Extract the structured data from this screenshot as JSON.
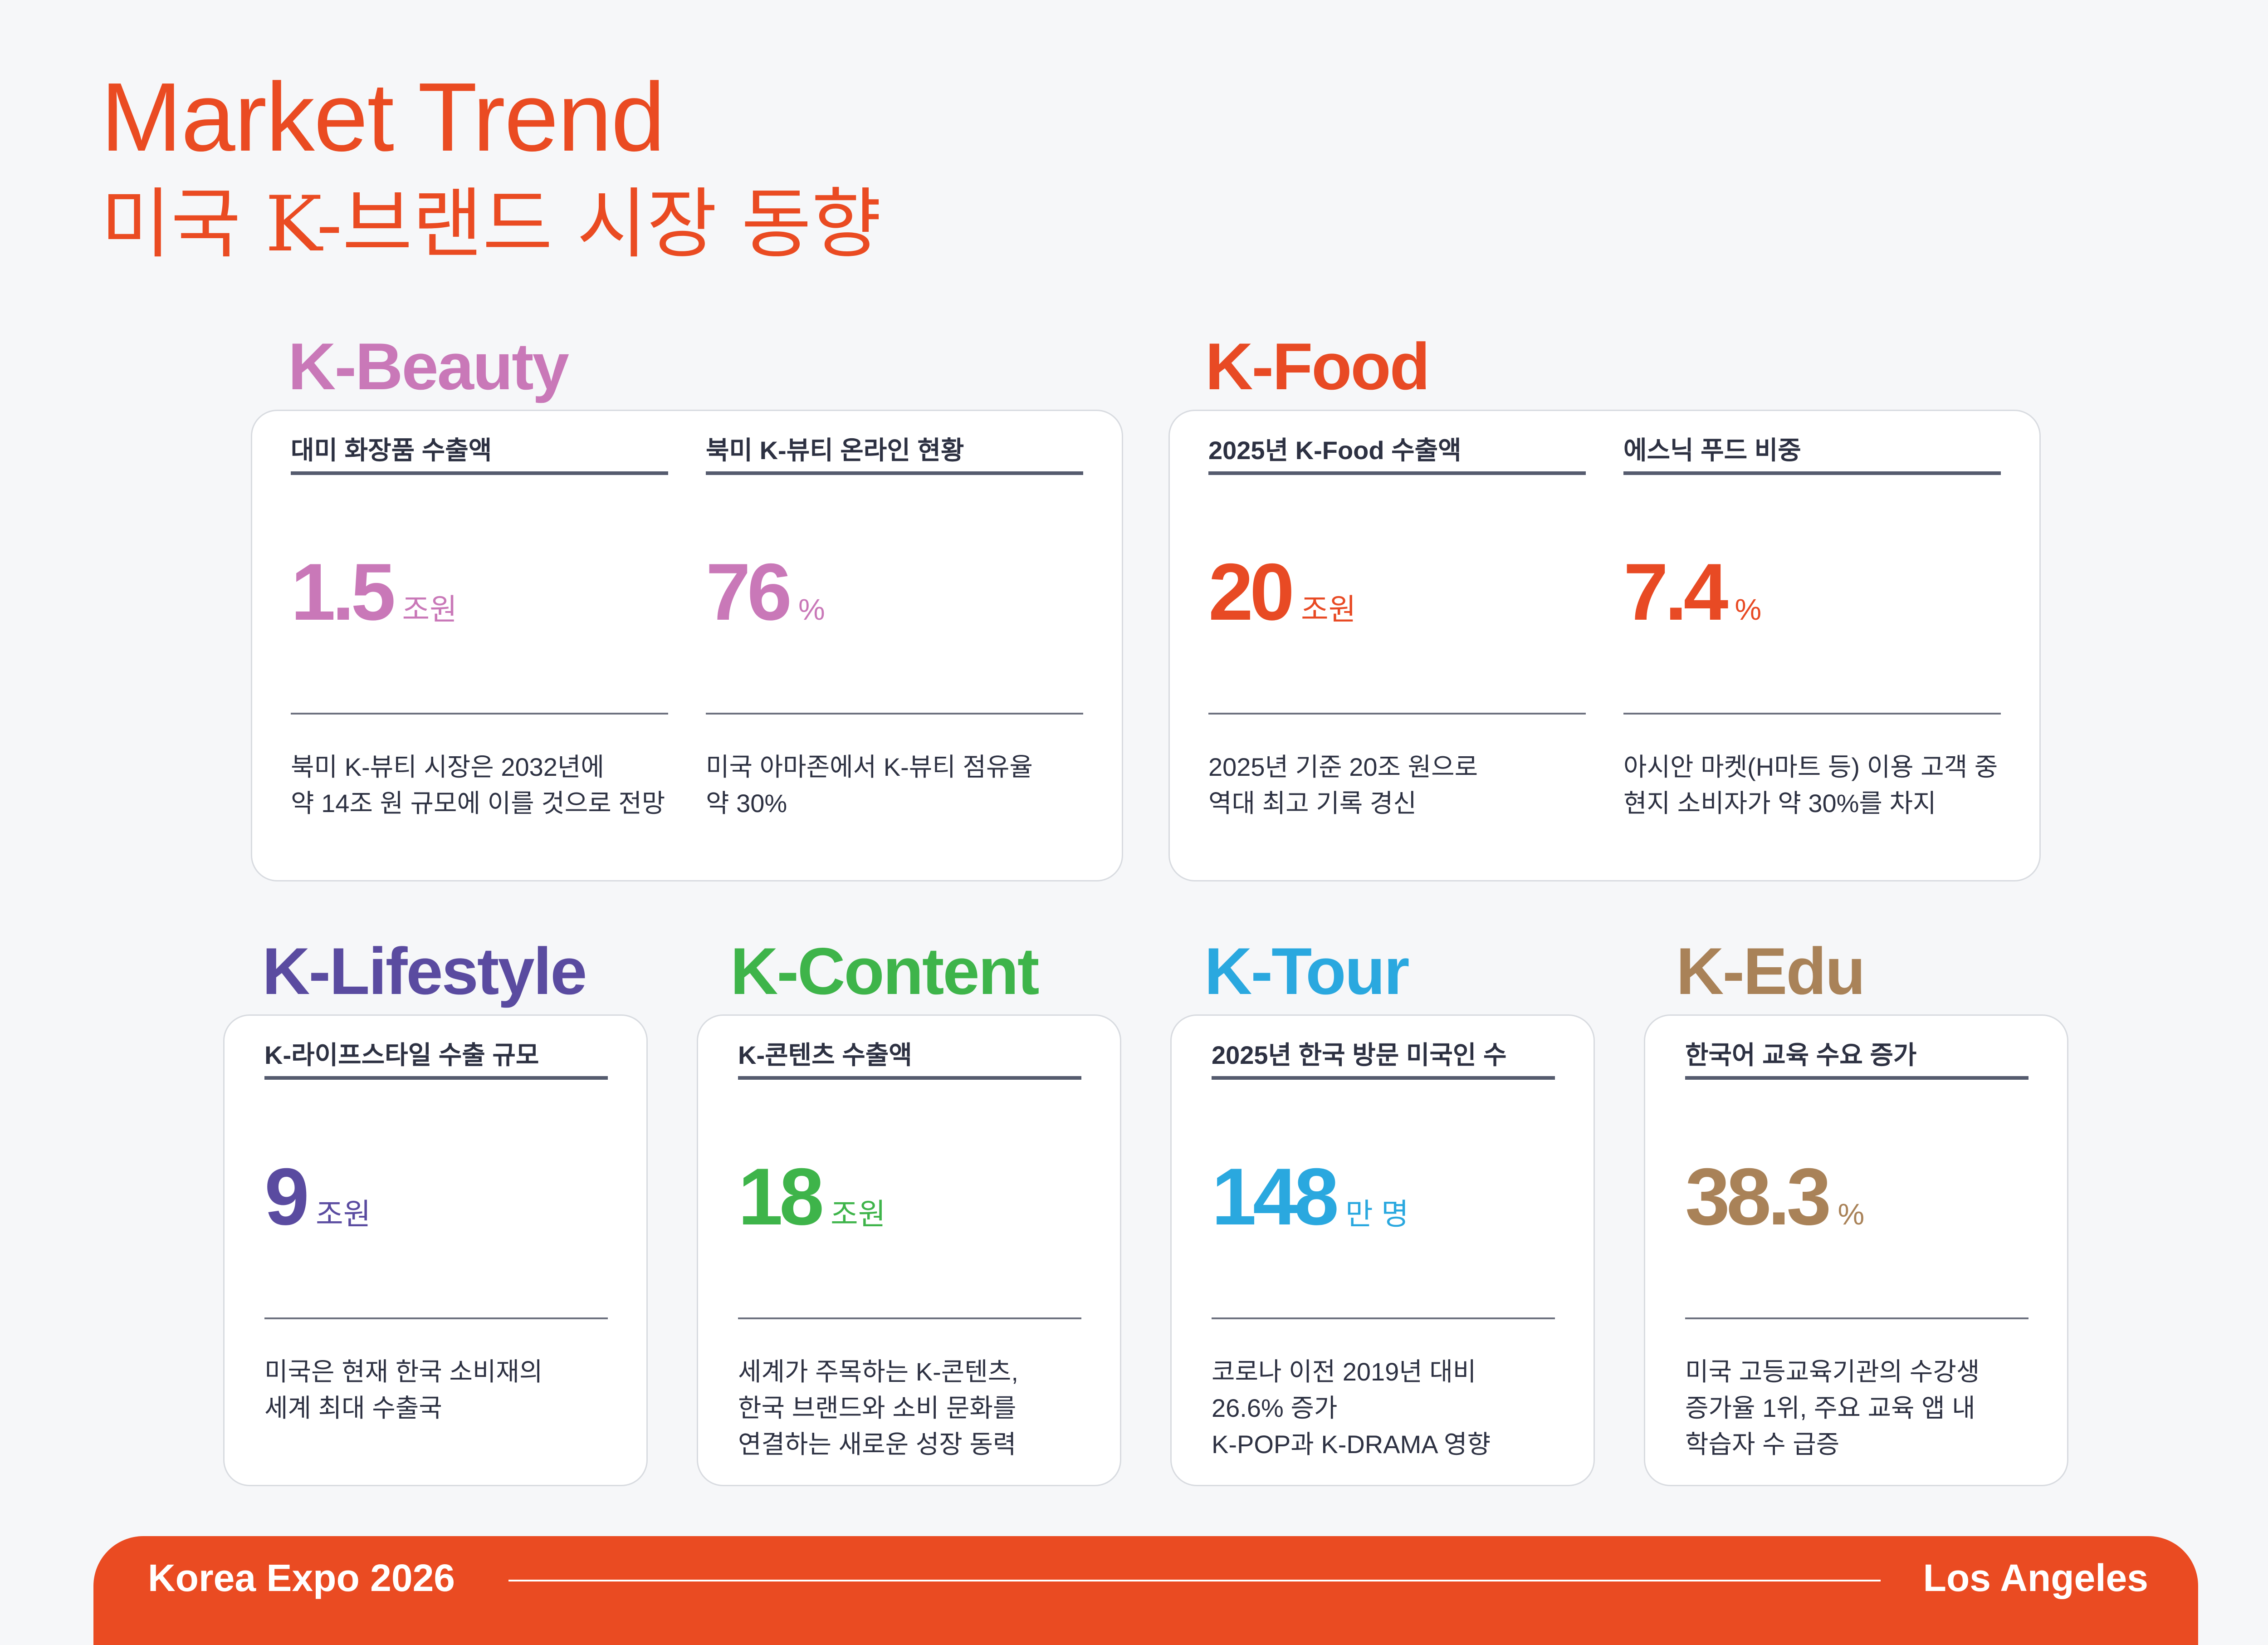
{
  "header": {
    "title_en": "Market Trend",
    "title_ko": "미국 K-브랜드 시장 동향"
  },
  "colors": {
    "accent": "#ea4b22",
    "beauty": "#c978b8",
    "food": "#e84a24",
    "lifestyle": "#5a4ba0",
    "content": "#3eb44a",
    "tour": "#2aa8df",
    "edu": "#a98258"
  },
  "beauty": {
    "label": "K-Beauty",
    "items": [
      {
        "heading": "대미 화장품 수출액",
        "value": "1.5",
        "unit": "조원",
        "desc": "북미 K-뷰티 시장은 2032년에\n약 14조 원 규모에 이를 것으로 전망"
      },
      {
        "heading": "북미 K-뷰티 온라인 현황",
        "value": "76",
        "unit": "%",
        "desc": "미국 아마존에서 K-뷰티 점유율\n약 30%"
      }
    ]
  },
  "food": {
    "label": "K-Food",
    "items": [
      {
        "heading": "2025년 K-Food 수출액",
        "value": "20",
        "unit": "조원",
        "desc": "2025년 기준 20조 원으로\n역대 최고 기록 경신"
      },
      {
        "heading": "에스닉 푸드 비중",
        "value": "7.4",
        "unit": "%",
        "desc": "아시안 마켓(H마트 등) 이용 고객 중\n현지 소비자가 약 30%를 차지"
      }
    ]
  },
  "lifestyle": {
    "label": "K-Lifestyle",
    "heading": "K-라이프스타일 수출 규모",
    "value": "9",
    "unit": "조원",
    "desc": "미국은 현재 한국 소비재의\n세계 최대 수출국"
  },
  "content": {
    "label": "K-Content",
    "heading": "K-콘텐츠 수출액",
    "value": "18",
    "unit": "조원",
    "desc": "세계가 주목하는 K-콘텐츠,\n한국 브랜드와 소비 문화를\n연결하는 새로운 성장 동력"
  },
  "tour": {
    "label": "K-Tour",
    "heading": "2025년 한국 방문 미국인 수",
    "value": "148",
    "unit": "만 명",
    "desc": "코로나 이전 2019년 대비\n26.6% 증가\nK-POP과 K-DRAMA 영향"
  },
  "edu": {
    "label": "K-Edu",
    "heading": "한국어 교육 수요 증가",
    "value": "38.3",
    "unit": "%",
    "desc": "미국 고등교육기관의 수강생\n증가율 1위, 주요 교육 앱 내\n학습자 수 급증"
  },
  "footer": {
    "left": "Korea Expo 2026",
    "right": "Los Angeles"
  }
}
